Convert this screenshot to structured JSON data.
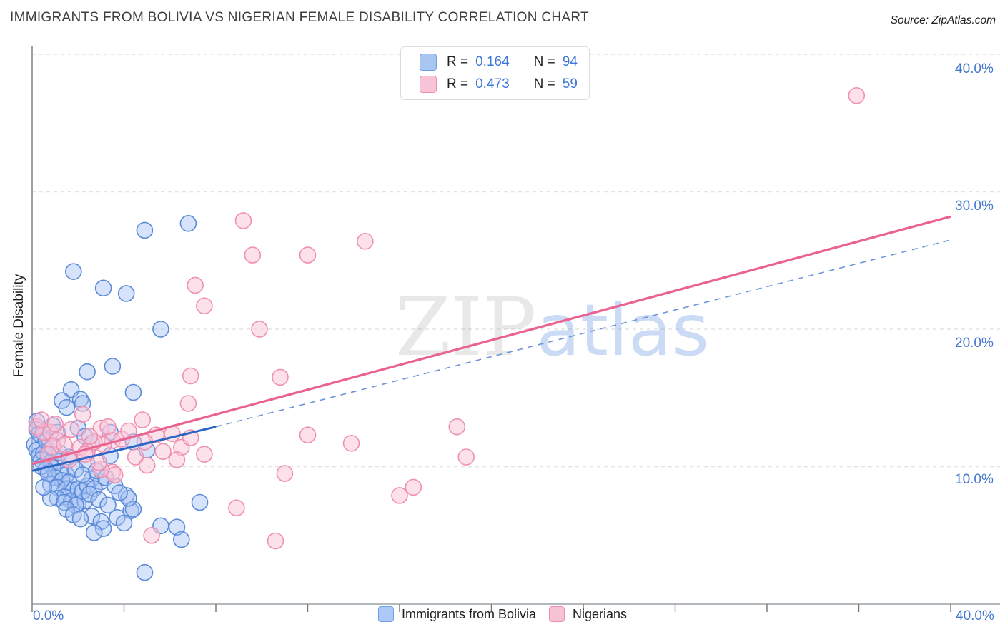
{
  "title": "IMMIGRANTS FROM BOLIVIA VS NIGERIAN FEMALE DISABILITY CORRELATION CHART",
  "source": "Source: ZipAtlas.com",
  "watermark": {
    "zip": "ZIP",
    "atlas": "atlas"
  },
  "y_axis": {
    "label": "Female Disability",
    "ticks": [
      "40.0%",
      "30.0%",
      "20.0%",
      "10.0%"
    ]
  },
  "x_axis": {
    "min_label": "0.0%",
    "max_label": "40.0%"
  },
  "stats_legend": {
    "rows": [
      {
        "series": "Immigrants from Bolivia",
        "r_label": "R =",
        "r_value": "0.164",
        "n_label": "N =",
        "n_value": "94"
      },
      {
        "series": "Nigerians",
        "r_label": "R =",
        "r_value": "0.473",
        "n_label": "N =",
        "n_value": "59"
      }
    ]
  },
  "bottom_legend": {
    "items": [
      {
        "label": "Immigrants from Bolivia"
      },
      {
        "label": "Nigerians"
      }
    ]
  },
  "chart_data": {
    "type": "scatter",
    "title": "Immigrants from Bolivia vs Nigerian Female Disability",
    "xlabel": "",
    "ylabel": "Female Disability",
    "xlim": [
      0,
      40
    ],
    "ylim": [
      0,
      40.6
    ],
    "x_ticks": [
      0,
      4,
      8,
      12,
      16,
      20,
      24,
      28,
      32,
      36,
      40
    ],
    "y_gridlines": [
      10,
      20,
      30,
      40
    ],
    "grid": "dashed-horizontal",
    "legend_position": "bottom-center",
    "series": [
      {
        "name": "Immigrants from Bolivia",
        "r": 0.164,
        "n": 94,
        "stroke": "#5b8bd8",
        "fill": "rgba(164,194,244,0.45)",
        "points": [
          [
            6.8,
            27.7
          ],
          [
            4.9,
            27.2
          ],
          [
            1.8,
            24.2
          ],
          [
            3.1,
            23.0
          ],
          [
            4.1,
            22.6
          ],
          [
            5.6,
            20.0
          ],
          [
            3.5,
            17.3
          ],
          [
            2.4,
            16.9
          ],
          [
            4.4,
            15.4
          ],
          [
            1.7,
            15.6
          ],
          [
            1.3,
            14.8
          ],
          [
            2.1,
            14.9
          ],
          [
            1.5,
            14.3
          ],
          [
            0.2,
            13.3
          ],
          [
            0.2,
            12.7
          ],
          [
            0.4,
            12.2
          ],
          [
            0.1,
            11.6
          ],
          [
            0.2,
            11.2
          ],
          [
            0.3,
            10.8
          ],
          [
            0.5,
            11.0
          ],
          [
            0.4,
            10.5
          ],
          [
            0.8,
            10.3
          ],
          [
            1.1,
            10.4
          ],
          [
            0.9,
            9.9
          ],
          [
            0.6,
            9.8
          ],
          [
            1.2,
            9.6
          ],
          [
            1.5,
            9.4
          ],
          [
            1.0,
            9.2
          ],
          [
            1.3,
            9.0
          ],
          [
            1.6,
            8.9
          ],
          [
            0.8,
            8.7
          ],
          [
            1.1,
            8.5
          ],
          [
            1.5,
            8.4
          ],
          [
            1.8,
            8.3
          ],
          [
            2.0,
            8.4
          ],
          [
            1.4,
            7.8
          ],
          [
            1.1,
            7.7
          ],
          [
            1.7,
            7.5
          ],
          [
            2.0,
            7.3
          ],
          [
            2.3,
            7.5
          ],
          [
            0.8,
            7.7
          ],
          [
            2.4,
            10.2
          ],
          [
            2.6,
            9.1
          ],
          [
            3.0,
            8.9
          ],
          [
            2.2,
            8.2
          ],
          [
            1.4,
            7.4
          ],
          [
            1.9,
            7.2
          ],
          [
            2.6,
            6.4
          ],
          [
            3.0,
            6.0
          ],
          [
            4.1,
            7.9
          ],
          [
            4.3,
            6.8
          ],
          [
            3.4,
            10.8
          ],
          [
            4.4,
            11.8
          ],
          [
            5.0,
            11.2
          ],
          [
            5.6,
            5.7
          ],
          [
            6.3,
            5.6
          ],
          [
            6.5,
            4.7
          ],
          [
            4.9,
            2.3
          ],
          [
            7.3,
            7.4
          ],
          [
            4.4,
            6.9
          ],
          [
            4.2,
            7.7
          ],
          [
            2.2,
            14.6
          ],
          [
            0.5,
            8.5
          ],
          [
            2.4,
            8.6
          ],
          [
            2.7,
            8.4
          ],
          [
            0.3,
            12.4
          ],
          [
            0.6,
            11.9
          ],
          [
            0.9,
            11.4
          ],
          [
            1.2,
            11.0
          ],
          [
            1.6,
            10.7
          ],
          [
            0.4,
            10.0
          ],
          [
            0.7,
            9.5
          ],
          [
            1.9,
            9.8
          ],
          [
            2.2,
            9.4
          ],
          [
            2.8,
            9.7
          ],
          [
            3.2,
            9.2
          ],
          [
            2.5,
            8.0
          ],
          [
            2.9,
            7.6
          ],
          [
            3.3,
            7.2
          ],
          [
            3.6,
            8.6
          ],
          [
            3.8,
            8.1
          ],
          [
            1.5,
            6.9
          ],
          [
            1.8,
            6.5
          ],
          [
            2.1,
            6.2
          ],
          [
            3.1,
            5.5
          ],
          [
            2.7,
            5.2
          ],
          [
            3.7,
            6.3
          ],
          [
            4.0,
            5.9
          ],
          [
            0.9,
            13.0
          ],
          [
            1.1,
            12.5
          ],
          [
            2.0,
            12.8
          ],
          [
            2.3,
            12.2
          ],
          [
            2.6,
            11.7
          ],
          [
            3.4,
            12.5
          ]
        ]
      },
      {
        "name": "Nigerians",
        "r": 0.473,
        "n": 59,
        "stroke": "#f090b0",
        "fill": "rgba(249,195,216,0.5)",
        "points": [
          [
            7.1,
            23.2
          ],
          [
            7.5,
            21.7
          ],
          [
            6.9,
            16.6
          ],
          [
            6.8,
            14.6
          ],
          [
            9.2,
            27.9
          ],
          [
            14.5,
            26.4
          ],
          [
            9.6,
            25.4
          ],
          [
            12.0,
            25.4
          ],
          [
            9.9,
            20.0
          ],
          [
            10.8,
            16.5
          ],
          [
            12.0,
            12.3
          ],
          [
            13.9,
            11.7
          ],
          [
            11.0,
            9.5
          ],
          [
            16.6,
            8.5
          ],
          [
            16.0,
            7.9
          ],
          [
            8.9,
            7.0
          ],
          [
            10.6,
            4.6
          ],
          [
            18.5,
            12.9
          ],
          [
            18.9,
            10.7
          ],
          [
            35.9,
            37.0
          ],
          [
            5.2,
            5.0
          ],
          [
            0.2,
            12.9
          ],
          [
            0.5,
            12.5
          ],
          [
            0.8,
            12.5
          ],
          [
            1.1,
            11.9
          ],
          [
            0.9,
            11.5
          ],
          [
            1.4,
            11.6
          ],
          [
            2.2,
            13.8
          ],
          [
            3.0,
            12.8
          ],
          [
            3.3,
            12.9
          ],
          [
            3.5,
            11.9
          ],
          [
            3.1,
            11.6
          ],
          [
            2.1,
            11.4
          ],
          [
            2.4,
            11.1
          ],
          [
            2.3,
            10.9
          ],
          [
            3.5,
            9.6
          ],
          [
            3.6,
            9.4
          ],
          [
            4.5,
            10.7
          ],
          [
            2.7,
            11.8
          ],
          [
            4.8,
            13.4
          ],
          [
            5.4,
            12.3
          ],
          [
            6.1,
            12.4
          ],
          [
            6.5,
            11.4
          ],
          [
            7.5,
            10.9
          ],
          [
            3.9,
            12.0
          ],
          [
            3.0,
            9.8
          ],
          [
            0.4,
            13.4
          ],
          [
            1.0,
            13.1
          ],
          [
            1.7,
            12.7
          ],
          [
            2.5,
            12.2
          ],
          [
            4.2,
            12.6
          ],
          [
            4.9,
            11.8
          ],
          [
            5.7,
            11.1
          ],
          [
            6.3,
            10.5
          ],
          [
            0.7,
            10.9
          ],
          [
            1.6,
            10.5
          ],
          [
            2.9,
            10.3
          ],
          [
            5.0,
            10.1
          ],
          [
            6.9,
            12.1
          ]
        ]
      }
    ],
    "trend_lines": [
      {
        "series": "Immigrants from Bolivia",
        "style": "solid",
        "x1": 0,
        "y1": 9.7,
        "x2": 8.0,
        "y2": 12.9,
        "color": "#2b66c4",
        "width": 3
      },
      {
        "series": "Immigrants from Bolivia",
        "style": "dashed",
        "x1": 8.0,
        "y1": 12.9,
        "x2": 40,
        "y2": 26.5,
        "color": "#6b95d8",
        "width": 1.6
      },
      {
        "series": "Nigerians",
        "style": "solid",
        "x1": 0,
        "y1": 10.2,
        "x2": 40,
        "y2": 28.2,
        "color": "#e9638e",
        "width": 3.2
      }
    ]
  }
}
